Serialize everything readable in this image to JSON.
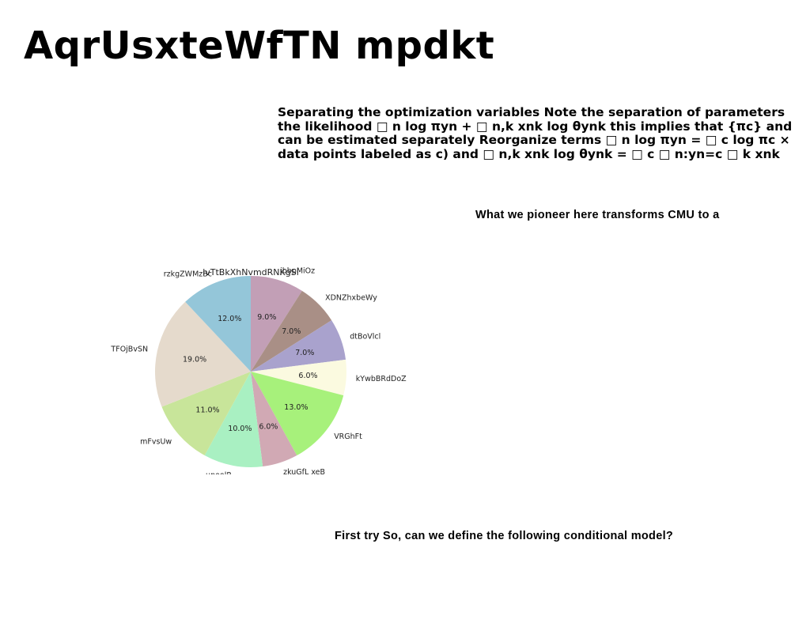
{
  "page": {
    "title": "AqrUsxteWfTN mpdkt",
    "paragraph_lines": [
      "Separating the optimization variables Note the separation of parameters",
      "the likelihood □ n log πyn + □ n,k xnk log θynk this implies that {πc} and",
      "can be estimated separately Reorganize terms □ n log πyn = □ c log πc ×",
      "data points labeled as c) and □ n,k xnk log θynk = □ c □ n:yn=c □ k xnk"
    ],
    "caption_top": "What we pioneer here transforms CMU to a",
    "caption_bottom": "First try So, can we define the following conditional model?"
  },
  "chart_data": {
    "type": "pie",
    "title": "lvTtBkXhNvmdRNKgSi",
    "start_angle_deg": 90,
    "direction": "clockwise",
    "labels": [
      "jbbpMiOz",
      "XDNZhxbeWy",
      "dtBoVlcl",
      "kYwbBRdDoZ",
      "VRGhFt",
      "zkuGfL xeB",
      "upoolP",
      "mFvsUw",
      "TFOjBvSN",
      "rzkgZWMzBc"
    ],
    "values": [
      9.0,
      7.0,
      7.0,
      6.0,
      13.0,
      6.0,
      10.0,
      11.0,
      19.0,
      12.0
    ],
    "pct_labels": [
      "9.0%",
      "7.0%",
      "7.0%",
      "6.0%",
      "13.0%",
      "6.0%",
      "10.0%",
      "11.0%",
      "19.0%",
      "12.0%"
    ],
    "colors": [
      "#c29fb6",
      "#a98f86",
      "#a9a2cd",
      "#fbfae0",
      "#a7f17b",
      "#d1a9b4",
      "#a9f0c2",
      "#c8e59a",
      "#e5dacc",
      "#94c6d9"
    ]
  }
}
